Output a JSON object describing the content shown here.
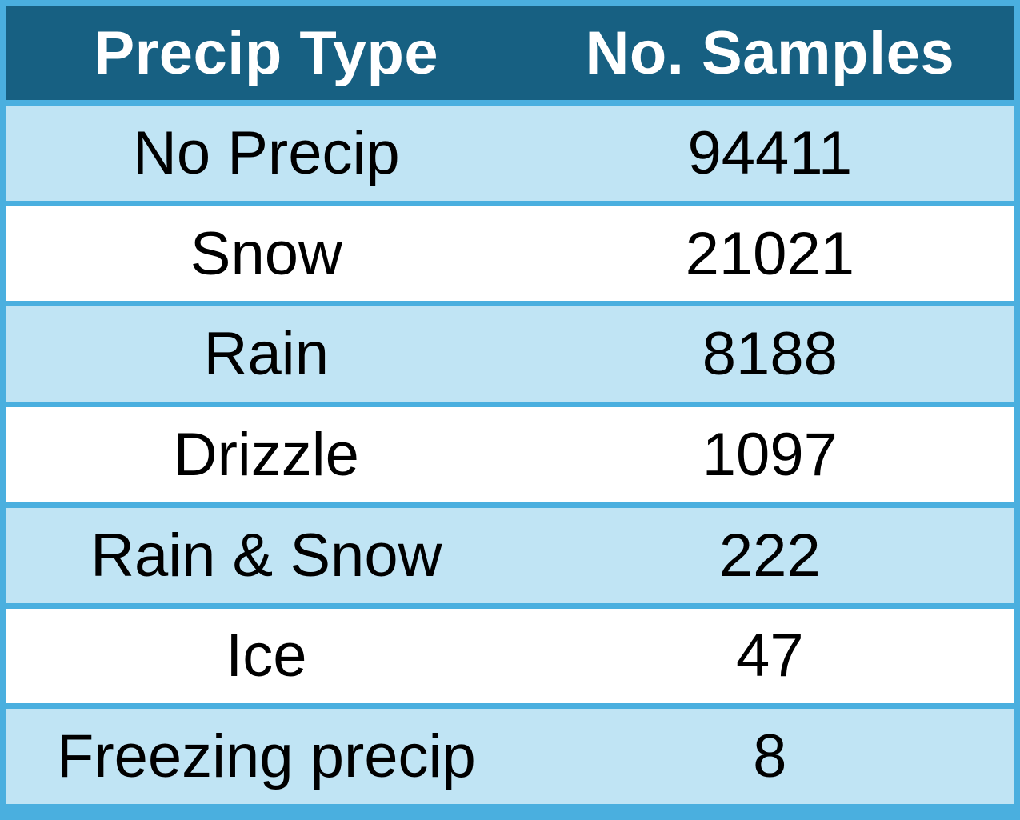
{
  "chart_data": {
    "type": "table",
    "columns": [
      "Precip Type",
      "No. Samples"
    ],
    "rows": [
      [
        "No Precip",
        94411
      ],
      [
        "Snow",
        21021
      ],
      [
        "Rain",
        8188
      ],
      [
        "Drizzle",
        1097
      ],
      [
        "Rain & Snow",
        222
      ],
      [
        "Ice",
        47
      ],
      [
        "Freezing precip",
        8
      ]
    ]
  },
  "colors": {
    "header_bg": "#176082",
    "header_text": "#ffffff",
    "grid": "#4aafdf",
    "band_row": "#c0e4f4",
    "plain_row": "#ffffff"
  }
}
